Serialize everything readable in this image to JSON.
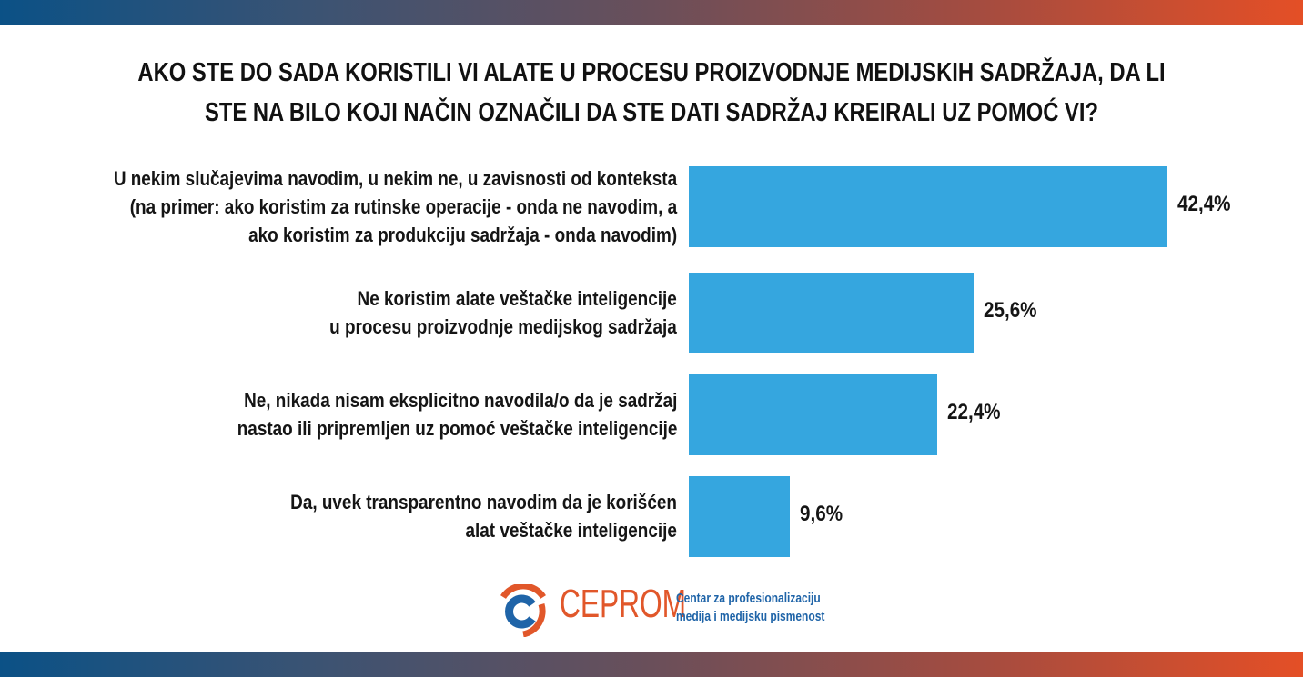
{
  "chart_data": {
    "type": "bar",
    "orientation": "horizontal",
    "title": "AKO STE DO SADA KORISTILI VI ALATE U PROCESU PROIZVODNJE MEDIJSKIH SADRŽAJA, DA LI STE NA BILO KOJI NAČIN OZNAČILI DA STE DATI SADRŽAJ KREIRALI UZ POMOĆ VI?",
    "categories": [
      [
        "U nekim slučajevima navodim, u nekim ne, u zavisnosti od konteksta",
        "(na primer: ako koristim za rutinske operacije - onda ne navodim, a",
        "ako koristim za produkciju sadržaja - onda navodim)"
      ],
      [
        "Ne koristim alate veštačke inteligencije",
        "u procesu proizvodnje medijskog sadržaja"
      ],
      [
        "Ne, nikada nisam eksplicitno navodila/o da je sadržaj",
        "nastao ili pripremljen uz pomoć veštačke inteligencije"
      ],
      [
        "Da, uvek transparentno navodim da je korišćen",
        "alat veštačke inteligencije"
      ]
    ],
    "values": [
      42.4,
      25.6,
      22.4,
      9.6
    ],
    "data_labels": [
      "42,4%",
      "25,6%",
      "22,4%",
      "9,6%"
    ],
    "bar_color": "#35a6df",
    "grid": false
  },
  "footer": {
    "brand": "CEPROM",
    "tagline_1": "Centar za profesionalizaciju",
    "tagline_2": "medija i medijsku pismenost"
  }
}
